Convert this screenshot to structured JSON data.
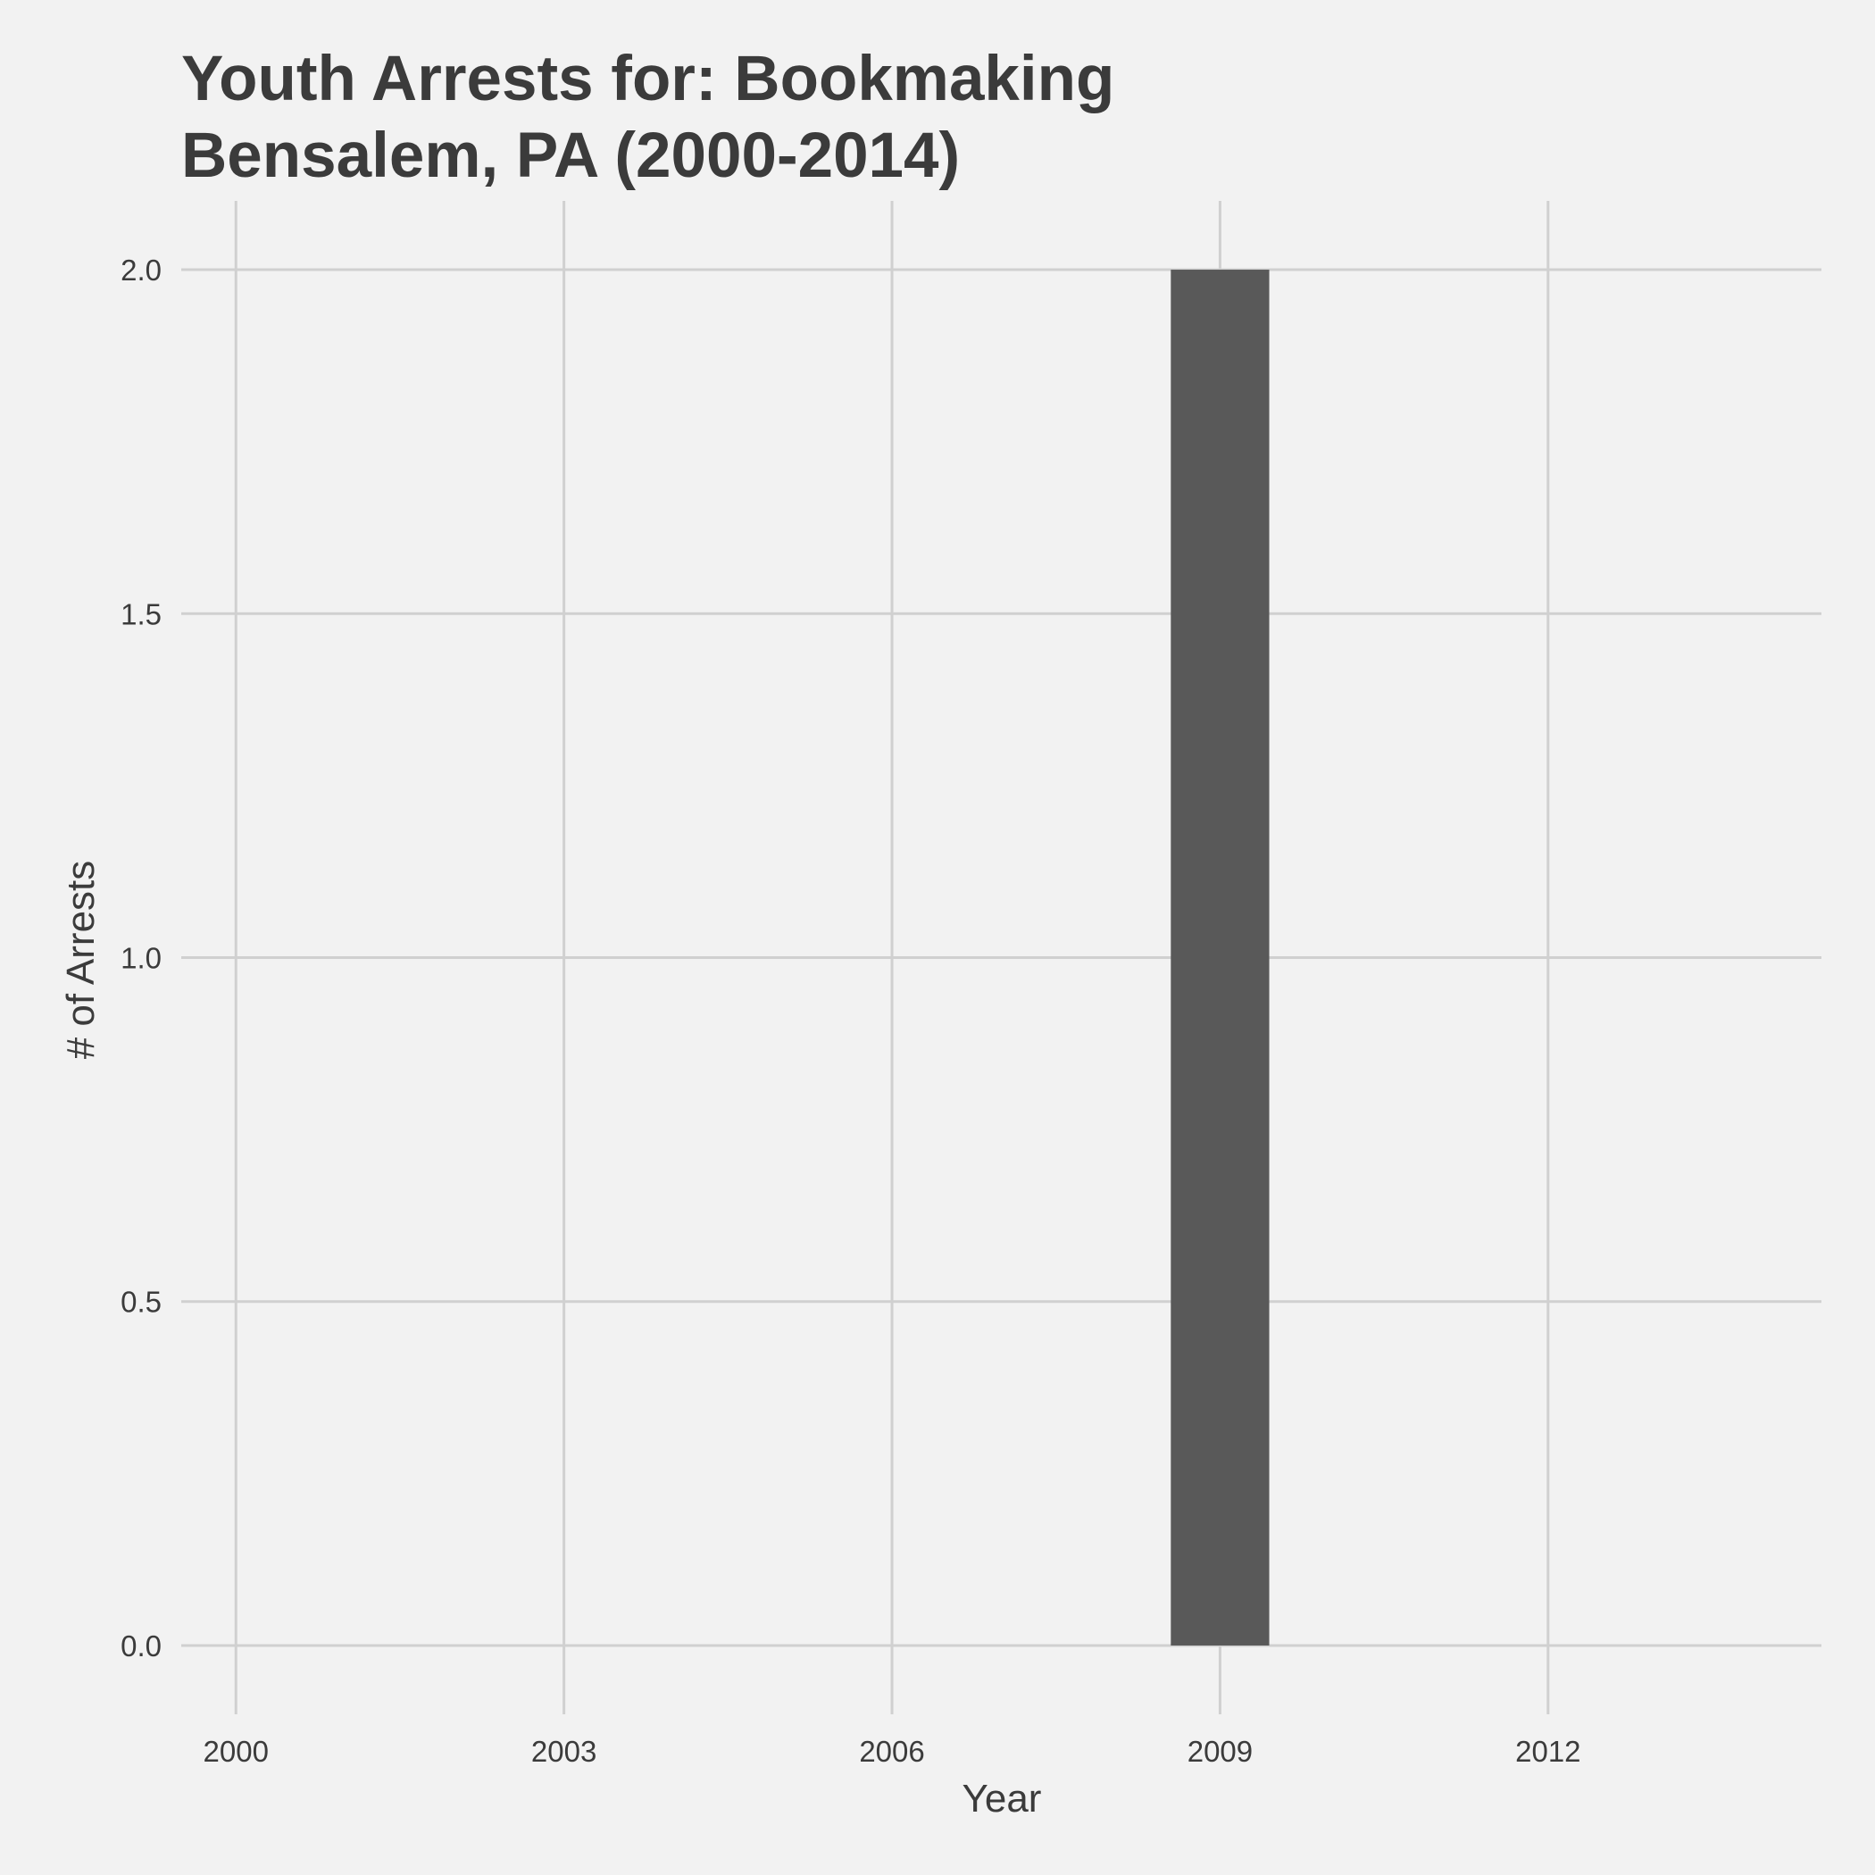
{
  "chart_data": {
    "type": "bar",
    "title_lines": [
      "Youth Arrests for: Bookmaking",
      "Bensalem, PA (2000-2014)"
    ],
    "xlabel": "Year",
    "ylabel": "# of Arrests",
    "x": [
      2000,
      2001,
      2002,
      2003,
      2004,
      2005,
      2006,
      2007,
      2008,
      2009,
      2010,
      2011,
      2012,
      2013,
      2014
    ],
    "values": [
      0,
      0,
      0,
      0,
      0,
      0,
      0,
      0,
      0,
      2,
      0,
      0,
      0,
      0,
      0
    ],
    "x_ticks": [
      "2000",
      "2003",
      "2006",
      "2009",
      "2012"
    ],
    "y_ticks": [
      "0.0",
      "0.5",
      "1.0",
      "1.5",
      "2.0"
    ],
    "xlim": [
      1999.5,
      2014.5
    ],
    "ylim": [
      -0.1,
      2.1
    ],
    "grid": true,
    "bar_color": "#595959"
  }
}
